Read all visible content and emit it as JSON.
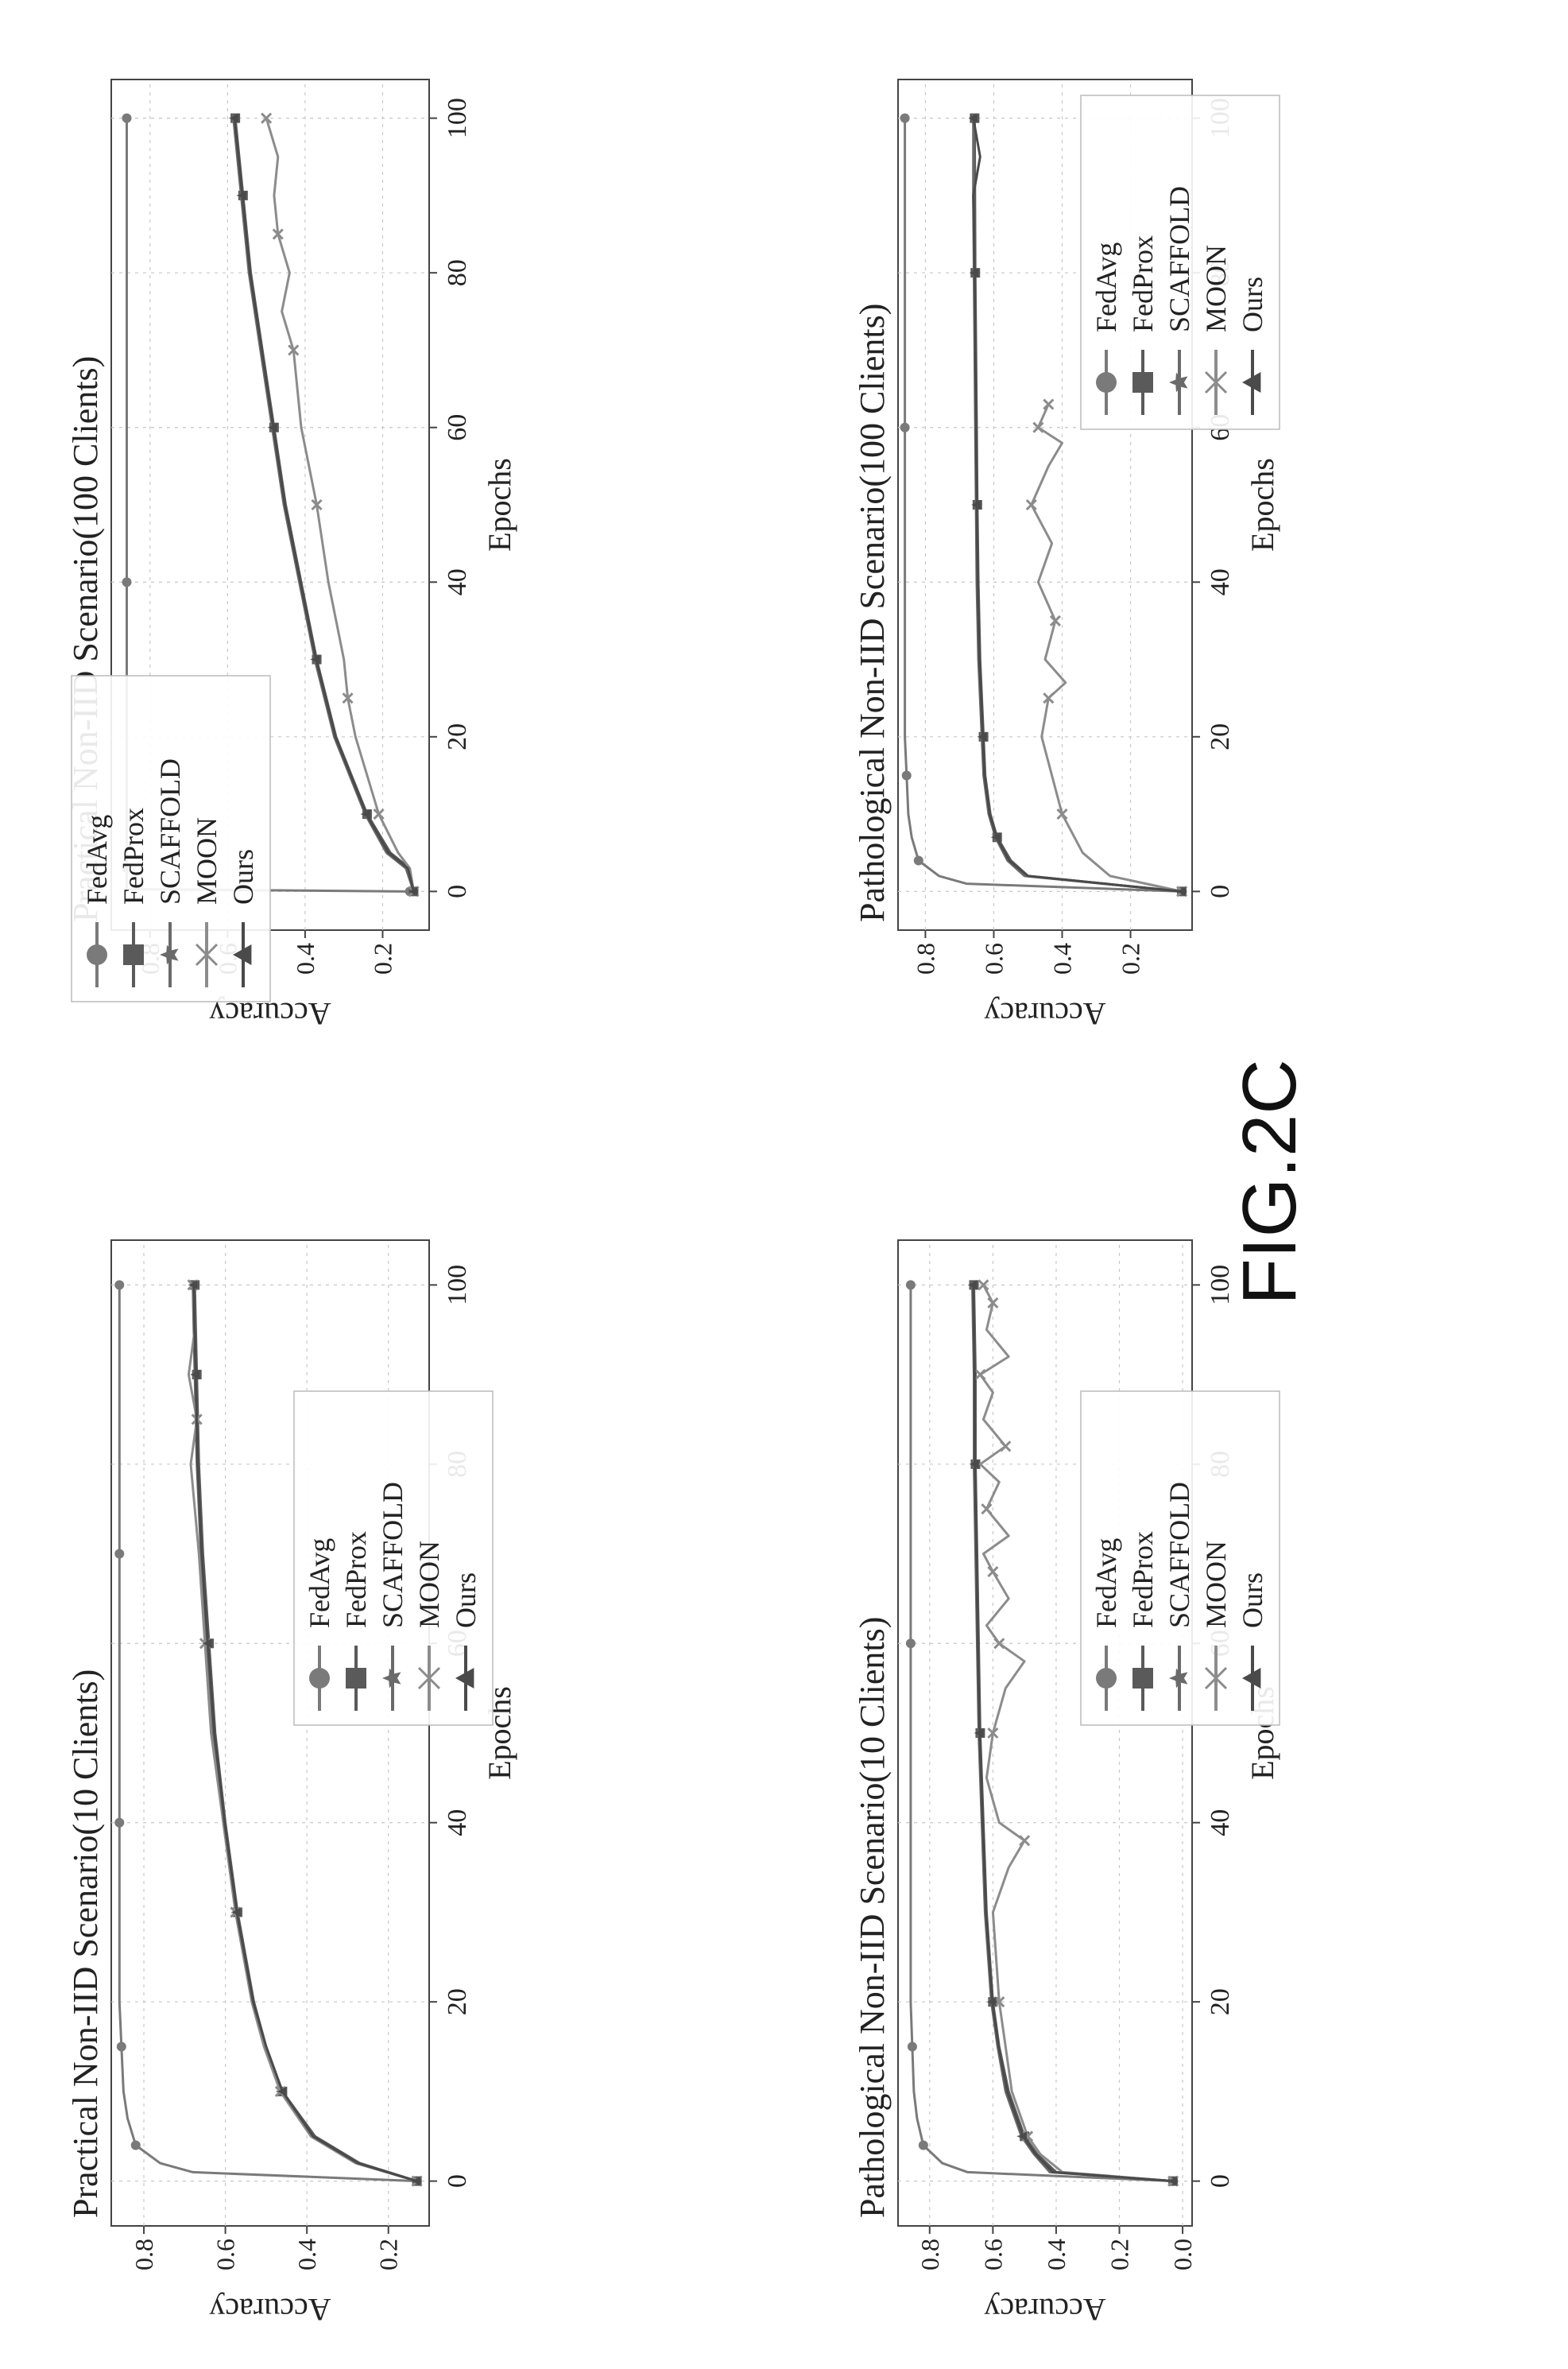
{
  "figure_label": "FIG.2C",
  "chart_data": [
    {
      "type": "line",
      "title": "Practical Non-IID Scenario(10 Clients)",
      "xlabel": "Epochs",
      "ylabel": "Accuracy",
      "xlim": [
        -5,
        105
      ],
      "ylim": [
        0.1,
        0.88
      ],
      "xticks": [
        0,
        20,
        40,
        60,
        80,
        100
      ],
      "yticks": [
        0.2,
        0.4,
        0.6,
        0.8
      ],
      "xtick_labels": [
        "0",
        "20",
        "40",
        "60",
        "80",
        "100"
      ],
      "ytick_labels": [
        "0.2",
        "0.4",
        "0.6",
        "0.8"
      ],
      "grid": true,
      "legend_position": "lower-right",
      "series": [
        {
          "name": "FedAvg",
          "marker": "circle",
          "color": "#7a7a7a",
          "x": [
            0,
            1,
            2,
            4,
            7,
            10,
            15,
            20,
            30,
            40,
            50,
            60,
            70,
            80,
            90,
            100
          ],
          "y": [
            0.13,
            0.68,
            0.76,
            0.82,
            0.84,
            0.85,
            0.855,
            0.86,
            0.86,
            0.86,
            0.86,
            0.86,
            0.86,
            0.86,
            0.86,
            0.86
          ]
        },
        {
          "name": "FedProx",
          "marker": "square",
          "color": "#5a5a5a",
          "x": [
            0,
            2,
            5,
            10,
            15,
            20,
            30,
            40,
            50,
            60,
            70,
            80,
            90,
            100
          ],
          "y": [
            0.13,
            0.27,
            0.38,
            0.46,
            0.5,
            0.53,
            0.57,
            0.6,
            0.625,
            0.64,
            0.655,
            0.665,
            0.67,
            0.675
          ]
        },
        {
          "name": "SCAFFOLD",
          "marker": "star",
          "color": "#6a6a6a",
          "x": [
            0,
            2,
            5,
            10,
            15,
            20,
            30,
            40,
            50,
            60,
            70,
            80,
            90,
            100
          ],
          "y": [
            0.13,
            0.28,
            0.39,
            0.465,
            0.505,
            0.535,
            0.575,
            0.605,
            0.63,
            0.645,
            0.66,
            0.67,
            0.675,
            0.68
          ]
        },
        {
          "name": "MOON",
          "marker": "x",
          "color": "#8c8c8c",
          "x": [
            0,
            2,
            5,
            10,
            15,
            20,
            30,
            40,
            50,
            60,
            70,
            80,
            85,
            90,
            95,
            100
          ],
          "y": [
            0.13,
            0.28,
            0.39,
            0.465,
            0.505,
            0.535,
            0.575,
            0.605,
            0.635,
            0.65,
            0.665,
            0.685,
            0.67,
            0.69,
            0.675,
            0.68
          ]
        },
        {
          "name": "Ours",
          "marker": "triangle",
          "color": "#4a4a4a",
          "x": [
            0,
            2,
            5,
            10,
            15,
            20,
            30,
            40,
            50,
            60,
            70,
            80,
            90,
            100
          ],
          "y": [
            0.13,
            0.275,
            0.385,
            0.46,
            0.5,
            0.532,
            0.572,
            0.602,
            0.627,
            0.643,
            0.658,
            0.668,
            0.673,
            0.678
          ]
        }
      ]
    },
    {
      "type": "line",
      "title": "Practical Non-IID Scenario(100 Clients)",
      "xlabel": "Epochs",
      "ylabel": "Accuracy",
      "xlim": [
        -5,
        105
      ],
      "ylim": [
        0.08,
        0.9
      ],
      "xticks": [
        0,
        20,
        40,
        60,
        80,
        100
      ],
      "yticks": [
        0.2,
        0.4,
        0.6,
        0.8
      ],
      "xtick_labels": [
        "0",
        "20",
        "40",
        "60",
        "80",
        "100"
      ],
      "ytick_labels": [
        "0.2",
        "0.4",
        "0.6",
        "0.8"
      ],
      "grid": true,
      "legend_position": "top-left",
      "series": [
        {
          "name": "FedAvg",
          "marker": "circle",
          "color": "#7a7a7a",
          "x": [
            0,
            0.3,
            1,
            3,
            10,
            20,
            40,
            60,
            80,
            100
          ],
          "y": [
            0.13,
            0.86,
            0.86,
            0.86,
            0.86,
            0.86,
            0.86,
            0.86,
            0.86,
            0.86
          ]
        },
        {
          "name": "FedProx",
          "marker": "square",
          "color": "#5a5a5a",
          "x": [
            0,
            3,
            5,
            10,
            15,
            20,
            30,
            40,
            50,
            60,
            70,
            80,
            90,
            100
          ],
          "y": [
            0.12,
            0.13,
            0.18,
            0.24,
            0.28,
            0.32,
            0.37,
            0.41,
            0.45,
            0.48,
            0.51,
            0.54,
            0.56,
            0.58
          ]
        },
        {
          "name": "SCAFFOLD",
          "marker": "star",
          "color": "#6a6a6a",
          "x": [
            0,
            3,
            5,
            10,
            15,
            20,
            30,
            40,
            50,
            60,
            70,
            80,
            90,
            100
          ],
          "y": [
            0.12,
            0.14,
            0.19,
            0.245,
            0.285,
            0.325,
            0.375,
            0.415,
            0.455,
            0.485,
            0.515,
            0.545,
            0.565,
            0.585
          ]
        },
        {
          "name": "MOON",
          "marker": "x",
          "color": "#8c8c8c",
          "x": [
            0,
            3,
            5,
            10,
            15,
            20,
            25,
            30,
            40,
            50,
            55,
            60,
            70,
            75,
            80,
            85,
            90,
            95,
            100
          ],
          "y": [
            0.12,
            0.13,
            0.16,
            0.21,
            0.24,
            0.27,
            0.29,
            0.3,
            0.34,
            0.37,
            0.39,
            0.41,
            0.43,
            0.46,
            0.44,
            0.47,
            0.48,
            0.47,
            0.5
          ]
        },
        {
          "name": "Ours",
          "marker": "triangle",
          "color": "#4a4a4a",
          "x": [
            0,
            3,
            5,
            10,
            15,
            20,
            30,
            40,
            50,
            60,
            70,
            80,
            90,
            100
          ],
          "y": [
            0.12,
            0.135,
            0.185,
            0.242,
            0.282,
            0.322,
            0.372,
            0.412,
            0.452,
            0.482,
            0.512,
            0.542,
            0.562,
            0.582
          ]
        }
      ]
    },
    {
      "type": "line",
      "title": "Pathological Non-IID Scenario(10 Clients)",
      "xlabel": "Epochs",
      "ylabel": "Accuracy",
      "xlim": [
        -5,
        105
      ],
      "ylim": [
        -0.03,
        0.9
      ],
      "xticks": [
        0,
        20,
        40,
        60,
        80,
        100
      ],
      "yticks": [
        0.0,
        0.2,
        0.4,
        0.6,
        0.8
      ],
      "xtick_labels": [
        "0",
        "20",
        "40",
        "60",
        "80",
        "100"
      ],
      "ytick_labels": [
        "0.0",
        "0.2",
        "0.4",
        "0.6",
        "0.8"
      ],
      "grid": true,
      "legend_position": "lower-right",
      "series": [
        {
          "name": "FedAvg",
          "marker": "circle",
          "color": "#7a7a7a",
          "x": [
            0,
            1,
            2,
            4,
            7,
            10,
            15,
            20,
            40,
            60,
            80,
            100
          ],
          "y": [
            0.03,
            0.68,
            0.76,
            0.82,
            0.84,
            0.85,
            0.855,
            0.86,
            0.86,
            0.86,
            0.86,
            0.86
          ]
        },
        {
          "name": "FedProx",
          "marker": "square",
          "color": "#5a5a5a",
          "x": [
            0,
            1,
            3,
            5,
            10,
            15,
            20,
            30,
            40,
            50,
            60,
            70,
            80,
            90,
            100
          ],
          "y": [
            0.03,
            0.4,
            0.46,
            0.5,
            0.55,
            0.58,
            0.6,
            0.62,
            0.63,
            0.64,
            0.645,
            0.65,
            0.655,
            0.655,
            0.66
          ]
        },
        {
          "name": "SCAFFOLD",
          "marker": "star",
          "color": "#6a6a6a",
          "x": [
            0,
            1,
            3,
            5,
            10,
            15,
            20,
            30,
            40,
            50,
            60,
            70,
            80,
            90,
            100
          ],
          "y": [
            0.03,
            0.42,
            0.47,
            0.51,
            0.56,
            0.585,
            0.605,
            0.625,
            0.635,
            0.645,
            0.65,
            0.655,
            0.66,
            0.66,
            0.665
          ]
        },
        {
          "name": "MOON",
          "marker": "x",
          "color": "#8c8c8c",
          "x": [
            0,
            1,
            3,
            5,
            10,
            15,
            20,
            30,
            35,
            38,
            40,
            45,
            50,
            55,
            58,
            60,
            62,
            65,
            68,
            70,
            72,
            75,
            78,
            80,
            82,
            85,
            88,
            90,
            92,
            95,
            98,
            100
          ],
          "y": [
            0.03,
            0.38,
            0.45,
            0.49,
            0.54,
            0.56,
            0.58,
            0.6,
            0.55,
            0.5,
            0.58,
            0.62,
            0.6,
            0.56,
            0.5,
            0.58,
            0.62,
            0.55,
            0.6,
            0.63,
            0.55,
            0.62,
            0.58,
            0.64,
            0.56,
            0.63,
            0.6,
            0.64,
            0.55,
            0.62,
            0.6,
            0.63
          ]
        },
        {
          "name": "Ours",
          "marker": "triangle",
          "color": "#4a4a4a",
          "x": [
            0,
            1,
            3,
            5,
            10,
            15,
            20,
            30,
            40,
            50,
            60,
            70,
            80,
            90,
            100
          ],
          "y": [
            0.03,
            0.41,
            0.465,
            0.505,
            0.555,
            0.582,
            0.602,
            0.622,
            0.632,
            0.642,
            0.648,
            0.652,
            0.657,
            0.658,
            0.662
          ]
        }
      ]
    },
    {
      "type": "line",
      "title": "Pathological Non-IID Scenario(100 Clients)",
      "xlabel": "Epochs",
      "ylabel": "Accuracy",
      "xlim": [
        -5,
        105
      ],
      "ylim": [
        0.02,
        0.88
      ],
      "xticks": [
        0,
        20,
        40,
        60,
        80,
        100
      ],
      "yticks": [
        0.2,
        0.4,
        0.6,
        0.8
      ],
      "xtick_labels": [
        "0",
        "20",
        "40",
        "60",
        "80",
        "100"
      ],
      "ytick_labels": [
        "0.2",
        "0.4",
        "0.6",
        "0.8"
      ],
      "grid": true,
      "legend_position": "right",
      "series": [
        {
          "name": "FedAvg",
          "marker": "circle",
          "color": "#7a7a7a",
          "x": [
            0,
            1,
            2,
            4,
            7,
            10,
            15,
            20,
            40,
            60,
            80,
            100
          ],
          "y": [
            0.05,
            0.68,
            0.76,
            0.82,
            0.84,
            0.85,
            0.855,
            0.86,
            0.86,
            0.86,
            0.86,
            0.86
          ]
        },
        {
          "name": "FedProx",
          "marker": "square",
          "color": "#5a5a5a",
          "x": [
            0,
            2,
            4,
            7,
            10,
            15,
            20,
            30,
            40,
            50,
            60,
            70,
            80,
            90,
            100
          ],
          "y": [
            0.05,
            0.5,
            0.55,
            0.59,
            0.61,
            0.625,
            0.63,
            0.64,
            0.645,
            0.648,
            0.65,
            0.652,
            0.654,
            0.655,
            0.656
          ]
        },
        {
          "name": "SCAFFOLD",
          "marker": "star",
          "color": "#6a6a6a",
          "x": [
            0,
            2,
            4,
            7,
            10,
            15,
            20,
            30,
            40,
            50,
            60,
            70,
            80,
            90,
            100
          ],
          "y": [
            0.05,
            0.51,
            0.56,
            0.595,
            0.615,
            0.63,
            0.635,
            0.645,
            0.65,
            0.652,
            0.654,
            0.656,
            0.658,
            0.66,
            0.66
          ]
        },
        {
          "name": "MOON",
          "marker": "x",
          "color": "#8c8c8c",
          "x": [
            0,
            2,
            5,
            10,
            15,
            20,
            25,
            27,
            30,
            35,
            40,
            45,
            50,
            55,
            58,
            60,
            63
          ],
          "y": [
            0.05,
            0.26,
            0.34,
            0.4,
            0.43,
            0.46,
            0.44,
            0.39,
            0.45,
            0.42,
            0.47,
            0.43,
            0.49,
            0.44,
            0.4,
            0.47,
            0.44
          ]
        },
        {
          "name": "Ours",
          "marker": "triangle",
          "color": "#4a4a4a",
          "x": [
            0,
            2,
            4,
            7,
            10,
            15,
            20,
            30,
            40,
            50,
            60,
            70,
            80,
            90,
            95,
            100
          ],
          "y": [
            0.05,
            0.5,
            0.555,
            0.592,
            0.612,
            0.627,
            0.632,
            0.642,
            0.647,
            0.65,
            0.652,
            0.654,
            0.656,
            0.66,
            0.64,
            0.66
          ]
        }
      ]
    }
  ]
}
